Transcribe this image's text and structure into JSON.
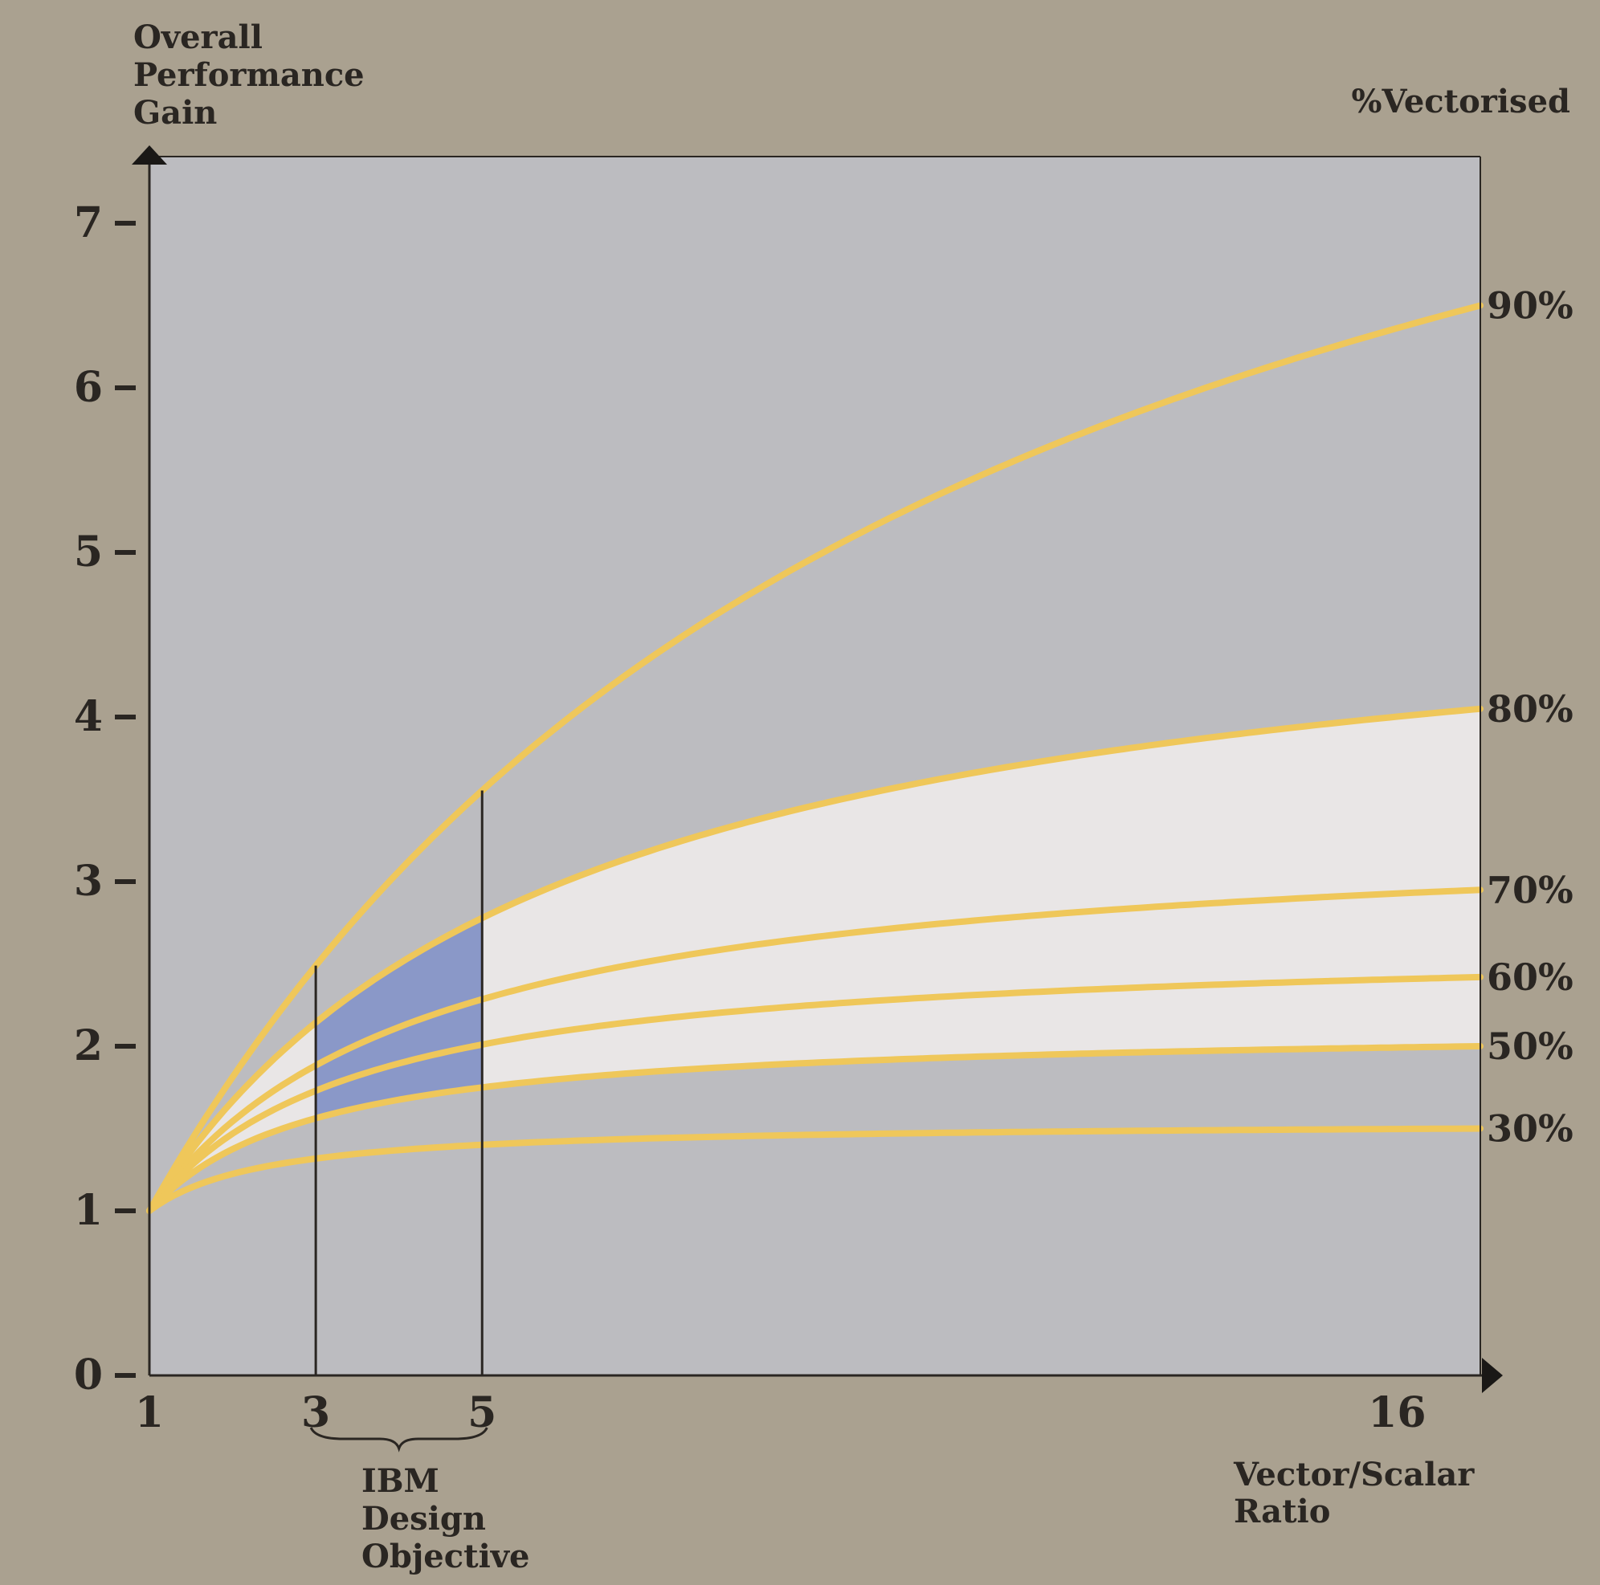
{
  "chart_data": {
    "type": "line",
    "title": "",
    "ylabel_lines": [
      "Overall",
      "Performance",
      "Gain"
    ],
    "xlabel_lines": [
      "Vector/Scalar",
      "Ratio"
    ],
    "legend_title": "%Vectorised",
    "xlim": [
      1,
      17
    ],
    "ylim": [
      0,
      7.3
    ],
    "x_ticks": [
      "1",
      "3",
      "5",
      "16"
    ],
    "y_ticks": [
      "0",
      "1",
      "2",
      "3",
      "4",
      "5",
      "6",
      "7"
    ],
    "x_tick_values": [
      1,
      3,
      5,
      16
    ],
    "y_tick_values": [
      0,
      1,
      2,
      3,
      4,
      5,
      6,
      7
    ],
    "grid": false,
    "series": [
      {
        "name": "90%",
        "fraction": 0.9,
        "x": [
          1,
          3,
          5,
          9,
          13,
          17
        ],
        "y": [
          1.0,
          2.5,
          3.57,
          5.0,
          5.9,
          6.5
        ]
      },
      {
        "name": "80%",
        "fraction": 0.8,
        "x": [
          1,
          3,
          5,
          9,
          13,
          17
        ],
        "y": [
          1.0,
          2.05,
          2.78,
          3.5,
          3.85,
          4.05
        ]
      },
      {
        "name": "70%",
        "fraction": 0.7,
        "x": [
          1,
          3,
          5,
          9,
          13,
          17
        ],
        "y": [
          1.0,
          1.8,
          2.27,
          2.65,
          2.85,
          2.95
        ]
      },
      {
        "name": "60%",
        "fraction": 0.6,
        "x": [
          1,
          3,
          5,
          9,
          13,
          17
        ],
        "y": [
          1.0,
          1.63,
          1.93,
          2.2,
          2.33,
          2.42
        ]
      },
      {
        "name": "50%",
        "fraction": 0.5,
        "x": [
          1,
          3,
          5,
          9,
          13,
          17
        ],
        "y": [
          1.0,
          1.48,
          1.68,
          1.84,
          1.94,
          2.0
        ]
      },
      {
        "name": "30%",
        "fraction": 0.3,
        "x": [
          1,
          3,
          5,
          9,
          13,
          17
        ],
        "y": [
          1.0,
          1.22,
          1.31,
          1.38,
          1.44,
          1.5
        ]
      }
    ],
    "annotation": {
      "text_lines": [
        "IBM",
        "Design",
        "Objective"
      ],
      "x_range": [
        3,
        5
      ]
    },
    "colors": {
      "page_background": "#aaa190",
      "plot_background": "#bcbcc0",
      "curve": "#efc75a",
      "highlight_band": "#e9e6e6",
      "design_band": "#8a98c8",
      "axis": "#2a2622"
    }
  }
}
